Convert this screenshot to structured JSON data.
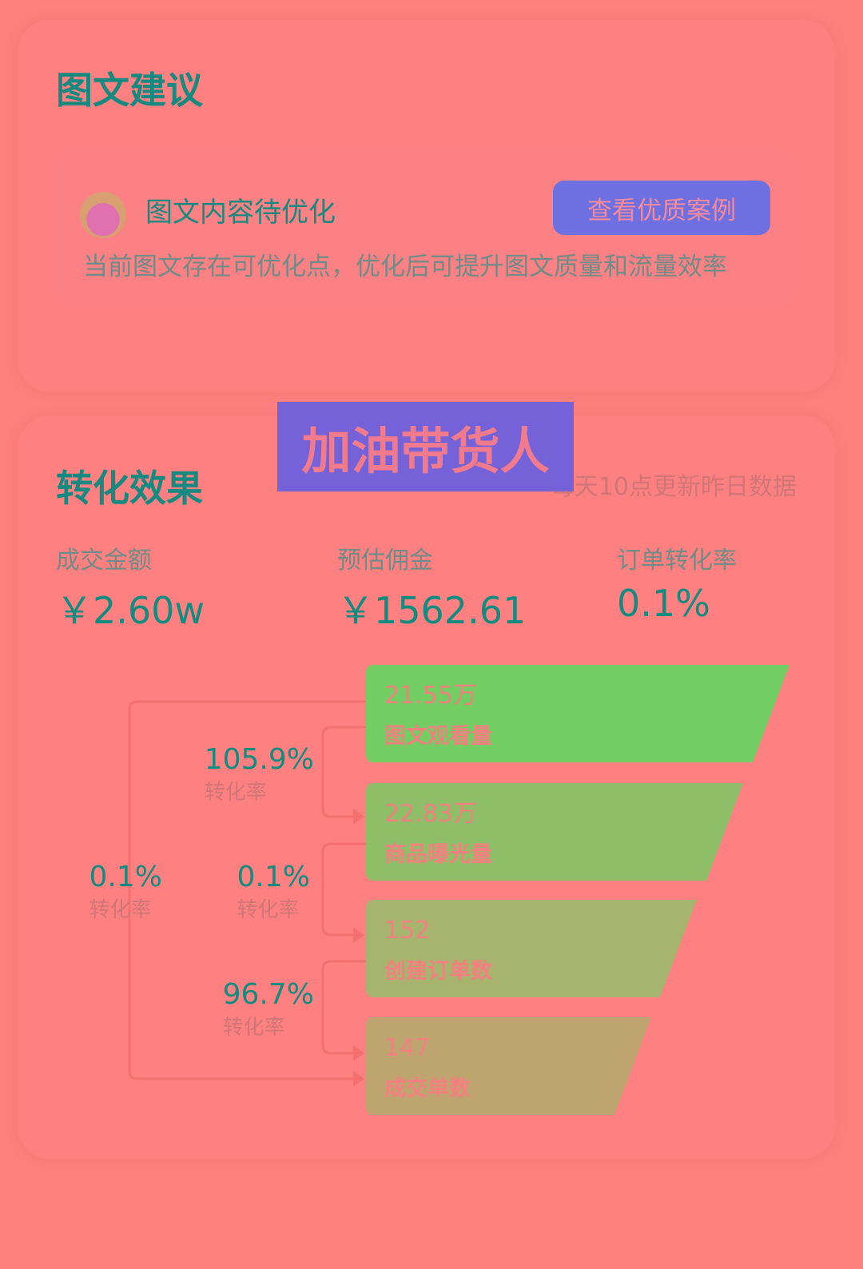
{
  "suggestion": {
    "title": "图文建议",
    "item_title": "图文内容待优化",
    "button_label": "查看优质案例",
    "description": "当前图文存在可优化点，优化后可提升图文质量和流量效率"
  },
  "banner": {
    "text": "加油带货人"
  },
  "conversion": {
    "title": "转化效果",
    "updated_note": "每天10点更新昨日数据",
    "metrics": [
      {
        "label": "成交金额",
        "value": "￥2.60w"
      },
      {
        "label": "预估佣金",
        "value": "￥1562.61"
      },
      {
        "label": "订单转化率",
        "value": "0.1%"
      }
    ],
    "funnel": [
      {
        "value": "21.55万",
        "label": "图文观看量",
        "color": "#72cd62"
      },
      {
        "value": "22.83万",
        "label": "商品曝光量",
        "color": "#8ebf68"
      },
      {
        "value": "152",
        "label": "创建订单数",
        "color": "#a6b46e"
      },
      {
        "value": "147",
        "label": "成交单数",
        "color": "#bea570"
      }
    ],
    "rates": [
      {
        "value": "105.9%",
        "label": "转化率"
      },
      {
        "value": "0.1%",
        "label": "转化率"
      },
      {
        "value": "96.7%",
        "label": "转化率"
      },
      {
        "value": "0.1%",
        "label": "转化率"
      }
    ]
  }
}
